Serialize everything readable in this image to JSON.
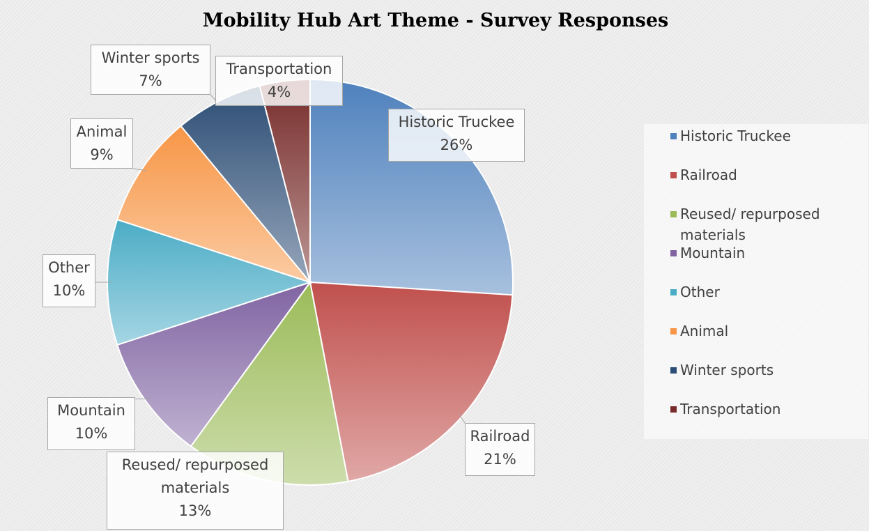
{
  "chart_data": {
    "type": "pie",
    "title": "Mobility Hub Art Theme - Survey Responses",
    "categories": [
      "Historic Truckee",
      "Railroad",
      "Reused/ repurposed materials",
      "Mountain",
      "Other",
      "Animal",
      "Winter sports",
      "Transportation"
    ],
    "values": [
      26,
      21,
      13,
      10,
      10,
      9,
      7,
      4
    ],
    "data_labels": [
      "26%",
      "21%",
      "13%",
      "10%",
      "10%",
      "9%",
      "7%",
      "4%"
    ],
    "colors": [
      "#4f81bd",
      "#c0504d",
      "#9bbb59",
      "#8064a2",
      "#4bacc6",
      "#f79646",
      "#2c4d75",
      "#772c2a"
    ],
    "legend_position": "right",
    "start_angle": "12 o'clock, clockwise"
  }
}
